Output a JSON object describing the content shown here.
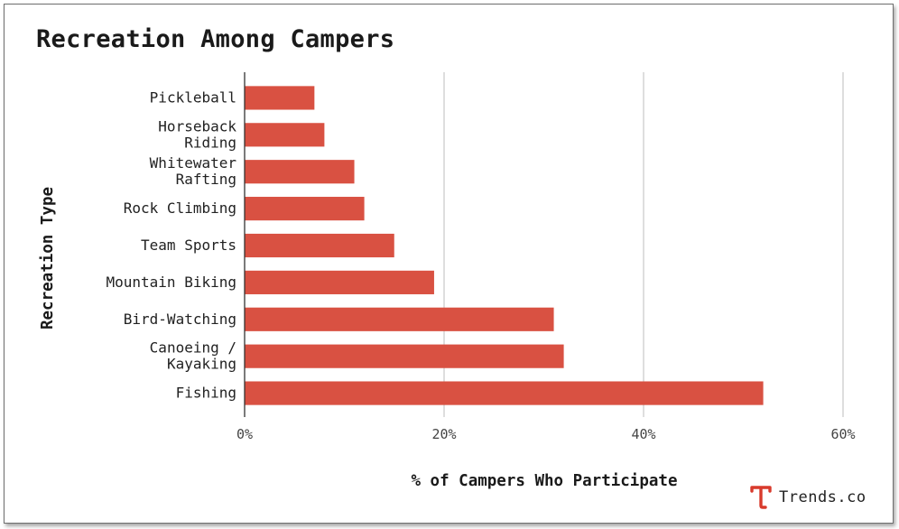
{
  "chart_data": {
    "type": "bar",
    "orientation": "horizontal",
    "title": "Recreation Among Campers",
    "xlabel": "% of Campers Who Participate",
    "ylabel": "Recreation Type",
    "categories": [
      [
        "Pickleball"
      ],
      [
        "Horseback",
        "Riding"
      ],
      [
        "Whitewater",
        "Rafting"
      ],
      [
        "Rock Climbing"
      ],
      [
        "Team Sports"
      ],
      [
        "Mountain Biking"
      ],
      [
        "Bird-Watching"
      ],
      [
        "Canoeing /",
        "Kayaking"
      ],
      [
        "Fishing"
      ]
    ],
    "values": [
      7,
      8,
      11,
      12,
      15,
      19,
      31,
      32,
      52
    ],
    "xlim": [
      0,
      60
    ],
    "xticks": [
      0,
      20,
      40,
      60
    ],
    "xtick_labels": [
      "0%",
      "20%",
      "40%",
      "60%"
    ],
    "grid": true,
    "bar_color": "#d95142"
  },
  "brand": {
    "name": "Trends.co",
    "icon": "trends-logo-icon",
    "color": "#d83a2c"
  }
}
